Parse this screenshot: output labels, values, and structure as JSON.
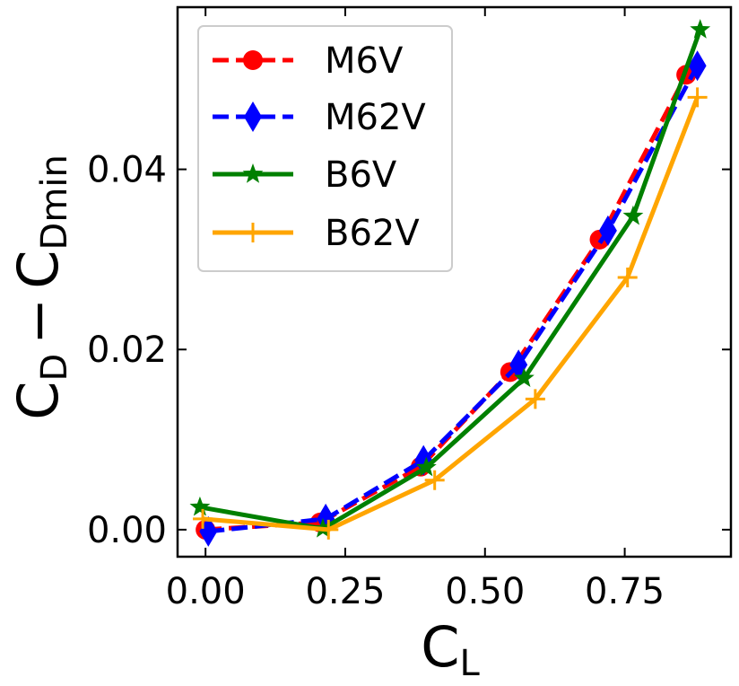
{
  "chart_data": {
    "type": "line",
    "xlabel": "C_L",
    "ylabel": "C_D − C_Dmin",
    "xlabel_parts": {
      "main": "C",
      "sub": "L"
    },
    "ylabel_parts": {
      "main1": "C",
      "sub1": "D",
      "minus": "−",
      "main2": "C",
      "sub2": "Dmin"
    },
    "xlim": [
      -0.05,
      0.94
    ],
    "ylim": [
      -0.003,
      0.058
    ],
    "xticks": [
      0.0,
      0.25,
      0.5,
      0.75
    ],
    "xtick_labels": [
      "0.00",
      "0.25",
      "0.50",
      "0.75"
    ],
    "yticks": [
      0.0,
      0.02,
      0.04
    ],
    "ytick_labels": [
      "0.00",
      "0.02",
      "0.04"
    ],
    "legend_position": "top-left",
    "series": [
      {
        "name": "M6V",
        "color": "#ff0000",
        "line_style": "dashed",
        "marker": "circle",
        "x": [
          0.0,
          0.205,
          0.385,
          0.545,
          0.705,
          0.86
        ],
        "y": [
          0.0,
          0.0008,
          0.007,
          0.0175,
          0.0322,
          0.0505
        ]
      },
      {
        "name": "M62V",
        "color": "#0000ff",
        "line_style": "dashed",
        "marker": "diamond",
        "x": [
          0.005,
          0.215,
          0.39,
          0.56,
          0.72,
          0.88
        ],
        "y": [
          -0.0002,
          0.0012,
          0.0077,
          0.0183,
          0.0332,
          0.0515
        ]
      },
      {
        "name": "B6V",
        "color": "#008000",
        "line_style": "solid",
        "marker": "star",
        "x": [
          -0.01,
          0.21,
          0.395,
          0.57,
          0.765,
          0.885
        ],
        "y": [
          0.0025,
          0.0001,
          0.0069,
          0.0168,
          0.0348,
          0.0555
        ]
      },
      {
        "name": "B62V",
        "color": "#ffa500",
        "line_style": "solid",
        "marker": "plus",
        "x": [
          -0.005,
          0.22,
          0.41,
          0.59,
          0.755,
          0.88
        ],
        "y": [
          0.0012,
          0.0,
          0.0055,
          0.0145,
          0.028,
          0.048
        ]
      }
    ]
  }
}
